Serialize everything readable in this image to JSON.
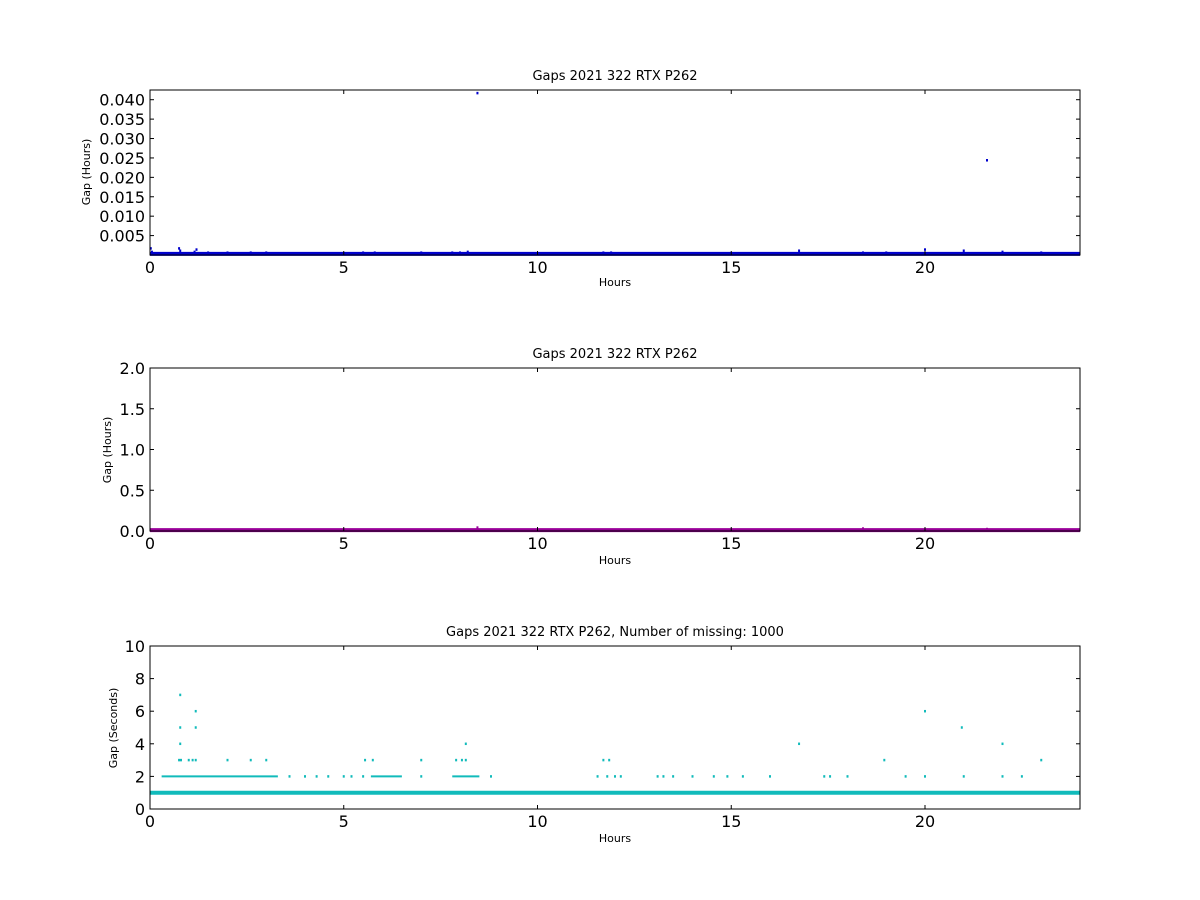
{
  "chart_data": [
    {
      "type": "scatter",
      "title": "Gaps 2021 322 RTX  P262",
      "xlabel": "Hours",
      "ylabel": "Gap (Hours)",
      "xlim": [
        0,
        24
      ],
      "ylim": [
        0,
        0.0425
      ],
      "xticks": [
        0,
        5,
        10,
        15,
        20
      ],
      "xtick_labels": [
        "0",
        "5",
        "10",
        "15",
        "20"
      ],
      "yticks": [
        0.005,
        0.01,
        0.015,
        0.02,
        0.025,
        0.03,
        0.035,
        0.04
      ],
      "ytick_labels": [
        "0.005",
        "0.010",
        "0.015",
        "0.020",
        "0.025",
        "0.030",
        "0.035",
        "0.040"
      ],
      "grid": false,
      "color": "#0000cc",
      "baseline": {
        "y": 0.00028,
        "x_range": [
          0,
          24
        ]
      },
      "series": [
        {
          "x": [
            0.02,
            0.05,
            0.75,
            0.78,
            1.15,
            1.2,
            1.5,
            2.0,
            2.6,
            3.0,
            5.5,
            5.8,
            7.0,
            7.8,
            8.0,
            8.2,
            8.45,
            11.7,
            11.9,
            16.75,
            18.4,
            19.0,
            20.0,
            21.0,
            21.6,
            22.0,
            23.0
          ],
          "y": [
            0.0017,
            0.0008,
            0.0017,
            0.0011,
            0.0008,
            0.0014,
            0.0006,
            0.0006,
            0.0006,
            0.0006,
            0.0006,
            0.0006,
            0.0006,
            0.0006,
            0.0006,
            0.0008,
            0.0417,
            0.0006,
            0.0006,
            0.0011,
            0.0006,
            0.0006,
            0.0014,
            0.0011,
            0.0244,
            0.0008,
            0.0006
          ]
        }
      ]
    },
    {
      "type": "scatter",
      "title": "Gaps 2021 322 RTX  P262",
      "xlabel": "Hours",
      "ylabel": "Gap (Hours)",
      "xlim": [
        0,
        24
      ],
      "ylim": [
        0,
        2.0
      ],
      "xticks": [
        0,
        5,
        10,
        15,
        20
      ],
      "xtick_labels": [
        "0",
        "5",
        "10",
        "15",
        "20"
      ],
      "yticks": [
        0.0,
        0.5,
        1.0,
        1.5,
        2.0
      ],
      "ytick_labels": [
        "0.0",
        "0.5",
        "1.0",
        "1.5",
        "2.0"
      ],
      "grid": false,
      "color": "#990099",
      "baseline": {
        "y": 0.01,
        "x_range": [
          0,
          24
        ]
      },
      "series": [
        {
          "x": [
            8.45,
            18.4,
            21.6
          ],
          "y": [
            0.042,
            0.03,
            0.024
          ]
        }
      ]
    },
    {
      "type": "scatter",
      "title": "Gaps 2021 322 RTX  P262, Number of missing: 1000",
      "xlabel": "Hours",
      "ylabel": "Gap (Seconds)",
      "xlim": [
        0,
        24
      ],
      "ylim": [
        0,
        10
      ],
      "xticks": [
        0,
        5,
        10,
        15,
        20
      ],
      "xtick_labels": [
        "0",
        "5",
        "10",
        "15",
        "20"
      ],
      "yticks": [
        0,
        2,
        4,
        6,
        8,
        10
      ],
      "ytick_labels": [
        "0",
        "2",
        "4",
        "6",
        "8",
        "10"
      ],
      "grid": false,
      "color": "#11bbbb",
      "baseline": {
        "y": 1,
        "x_range": [
          0,
          24
        ]
      },
      "dense_rows": [
        {
          "y": 2,
          "x_range": [
            0.3,
            3.3
          ]
        },
        {
          "y": 2,
          "x_range": [
            5.7,
            6.5
          ]
        },
        {
          "y": 2,
          "x_range": [
            7.8,
            8.5
          ]
        }
      ],
      "series": [
        {
          "x": [
            0.78,
            0.78,
            1.18,
            0.78,
            1.18,
            0.75,
            0.8,
            1.0,
            1.1,
            1.18,
            2.0,
            2.6,
            3.0,
            5.55,
            5.75,
            7.0,
            7.9,
            8.05,
            8.15,
            8.15,
            11.7,
            11.85,
            16.75,
            18.95,
            20.0,
            20.95,
            22.0,
            23.0,
            3.6,
            4.0,
            4.3,
            4.6,
            5.0,
            5.2,
            5.5,
            7.0,
            8.8,
            11.55,
            11.8,
            12.0,
            12.15,
            13.1,
            13.25,
            13.5,
            14.0,
            14.55,
            14.9,
            15.3,
            16.0,
            17.4,
            17.55,
            18.0,
            19.5,
            20.0,
            21.0,
            22.0,
            22.5
          ],
          "y": [
            7,
            5,
            6,
            4,
            5,
            3,
            3,
            3,
            3,
            3,
            3,
            3,
            3,
            3,
            3,
            3,
            3,
            3,
            3,
            4,
            3,
            3,
            4,
            3,
            6,
            5,
            4,
            3,
            2,
            2,
            2,
            2,
            2,
            2,
            2,
            2,
            2,
            2,
            2,
            2,
            2,
            2,
            2,
            2,
            2,
            2,
            2,
            2,
            2,
            2,
            2,
            2,
            2,
            2,
            2,
            2,
            2
          ]
        }
      ]
    }
  ]
}
